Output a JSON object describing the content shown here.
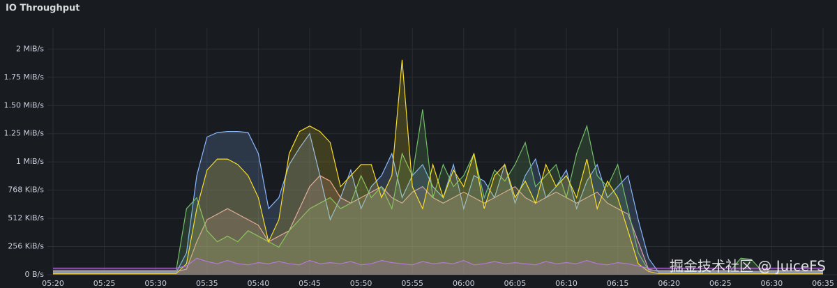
{
  "chart_data": {
    "type": "line",
    "title": "IO Throughput",
    "watermark": "掘金技术社区 @ JuiceFS",
    "x": [
      "05:20",
      "05:21",
      "05:22",
      "05:23",
      "05:24",
      "05:25",
      "05:26",
      "05:27",
      "05:28",
      "05:29",
      "05:30",
      "05:31",
      "05:32",
      "05:33",
      "05:34",
      "05:35",
      "05:36",
      "05:37",
      "05:38",
      "05:39",
      "05:40",
      "05:41",
      "05:42",
      "05:43",
      "05:44",
      "05:45",
      "05:46",
      "05:47",
      "05:48",
      "05:49",
      "05:50",
      "05:51",
      "05:52",
      "05:53",
      "05:54",
      "05:55",
      "05:56",
      "05:57",
      "05:58",
      "05:59",
      "06:00",
      "06:01",
      "06:02",
      "06:03",
      "06:04",
      "06:05",
      "06:06",
      "06:07",
      "06:08",
      "06:09",
      "06:10",
      "06:11",
      "06:12",
      "06:13",
      "06:14",
      "06:15",
      "06:16",
      "06:17",
      "06:18",
      "06:19",
      "06:20",
      "06:21",
      "06:22",
      "06:23",
      "06:24",
      "06:25",
      "06:26",
      "06:27",
      "06:28",
      "06:29",
      "06:30",
      "06:31",
      "06:32",
      "06:33",
      "06:34",
      "06:35"
    ],
    "xlim": [
      "05:20",
      "06:35"
    ],
    "xticks": [
      "05:20",
      "05:25",
      "05:30",
      "05:35",
      "05:40",
      "05:45",
      "05:50",
      "05:55",
      "06:00",
      "06:05",
      "06:10",
      "06:15",
      "06:20",
      "06:25",
      "06:30",
      "06:35"
    ],
    "ylim": [
      0,
      2240
    ],
    "yticks": [
      {
        "value": 0,
        "label": "0 B/s"
      },
      {
        "value": 256,
        "label": "256 KiB/s"
      },
      {
        "value": 512,
        "label": "512 KiB/s"
      },
      {
        "value": 768,
        "label": "768 KiB/s"
      },
      {
        "value": 1024,
        "label": "1 MiB/s"
      },
      {
        "value": 1280,
        "label": "1.25 MiB/s"
      },
      {
        "value": 1536,
        "label": "1.50 MiB/s"
      },
      {
        "value": 1792,
        "label": "1.75 MiB/s"
      },
      {
        "value": 2048,
        "label": "2 MiB/s"
      }
    ],
    "grid": true,
    "series": [
      {
        "color": "#f2a0a0",
        "values": [
          30,
          30,
          30,
          30,
          30,
          30,
          30,
          30,
          30,
          30,
          30,
          30,
          30,
          50,
          300,
          500,
          550,
          600,
          550,
          500,
          450,
          300,
          350,
          400,
          600,
          800,
          900,
          850,
          700,
          650,
          700,
          750,
          800,
          700,
          650,
          750,
          800,
          700,
          650,
          700,
          750,
          700,
          650,
          700,
          750,
          800,
          700,
          650,
          700,
          750,
          700,
          650,
          700,
          750,
          650,
          600,
          550,
          300,
          50,
          30,
          30,
          30,
          30,
          30,
          30,
          30,
          30,
          30,
          30,
          30,
          30,
          30,
          30,
          30,
          30,
          30
        ]
      },
      {
        "color": "#8ab8ff",
        "values": [
          20,
          20,
          20,
          20,
          20,
          20,
          20,
          20,
          20,
          20,
          20,
          20,
          20,
          200,
          900,
          1250,
          1290,
          1300,
          1300,
          1290,
          1100,
          600,
          700,
          1000,
          1150,
          1280,
          900,
          500,
          700,
          950,
          600,
          800,
          900,
          1100,
          700,
          900,
          1000,
          800,
          700,
          1000,
          600,
          900,
          850,
          700,
          1000,
          650,
          900,
          1050,
          700,
          800,
          950,
          600,
          850,
          1000,
          700,
          800,
          900,
          500,
          150,
          20,
          20,
          20,
          20,
          20,
          20,
          20,
          20,
          20,
          20,
          20,
          20,
          20,
          20,
          20,
          20,
          20
        ]
      },
      {
        "color": "#73bf69",
        "values": [
          40,
          40,
          40,
          40,
          40,
          40,
          40,
          40,
          40,
          40,
          40,
          40,
          40,
          600,
          700,
          400,
          300,
          350,
          300,
          400,
          350,
          300,
          250,
          400,
          500,
          600,
          650,
          700,
          600,
          650,
          900,
          700,
          800,
          600,
          1100,
          900,
          1500,
          700,
          1000,
          800,
          900,
          1100,
          700,
          950,
          850,
          1000,
          1200,
          800,
          900,
          1000,
          700,
          1100,
          1350,
          900,
          800,
          1000,
          600,
          200,
          40,
          40,
          40,
          40,
          40,
          40,
          40,
          40,
          40,
          150,
          140,
          40,
          40,
          40,
          40,
          40,
          40,
          40
        ]
      },
      {
        "color": "#fade2a",
        "values": [
          10,
          10,
          10,
          10,
          10,
          10,
          10,
          10,
          10,
          10,
          10,
          10,
          10,
          100,
          600,
          950,
          1050,
          1050,
          1000,
          900,
          700,
          300,
          500,
          1100,
          1300,
          1350,
          1300,
          1200,
          800,
          900,
          1000,
          1000,
          700,
          900,
          1950,
          800,
          600,
          1000,
          700,
          950,
          800,
          1100,
          600,
          900,
          1000,
          700,
          850,
          650,
          1000,
          800,
          900,
          700,
          1050,
          600,
          850,
          700,
          400,
          100,
          30,
          10,
          10,
          10,
          10,
          10,
          10,
          10,
          10,
          10,
          10,
          10,
          10,
          10,
          10,
          10,
          10,
          10
        ]
      },
      {
        "color": "#b877d9",
        "values": [
          60,
          60,
          60,
          60,
          60,
          60,
          60,
          60,
          60,
          60,
          60,
          60,
          60,
          80,
          150,
          120,
          100,
          130,
          100,
          90,
          110,
          100,
          120,
          100,
          90,
          130,
          100,
          110,
          100,
          120,
          90,
          100,
          130,
          110,
          100,
          90,
          120,
          100,
          110,
          100,
          130,
          90,
          100,
          120,
          100,
          110,
          100,
          90,
          120,
          100,
          110,
          100,
          130,
          100,
          90,
          110,
          100,
          80,
          60,
          60,
          60,
          60,
          60,
          60,
          60,
          60,
          60,
          60,
          60,
          60,
          60,
          60,
          60,
          60,
          60,
          60
        ]
      }
    ]
  }
}
